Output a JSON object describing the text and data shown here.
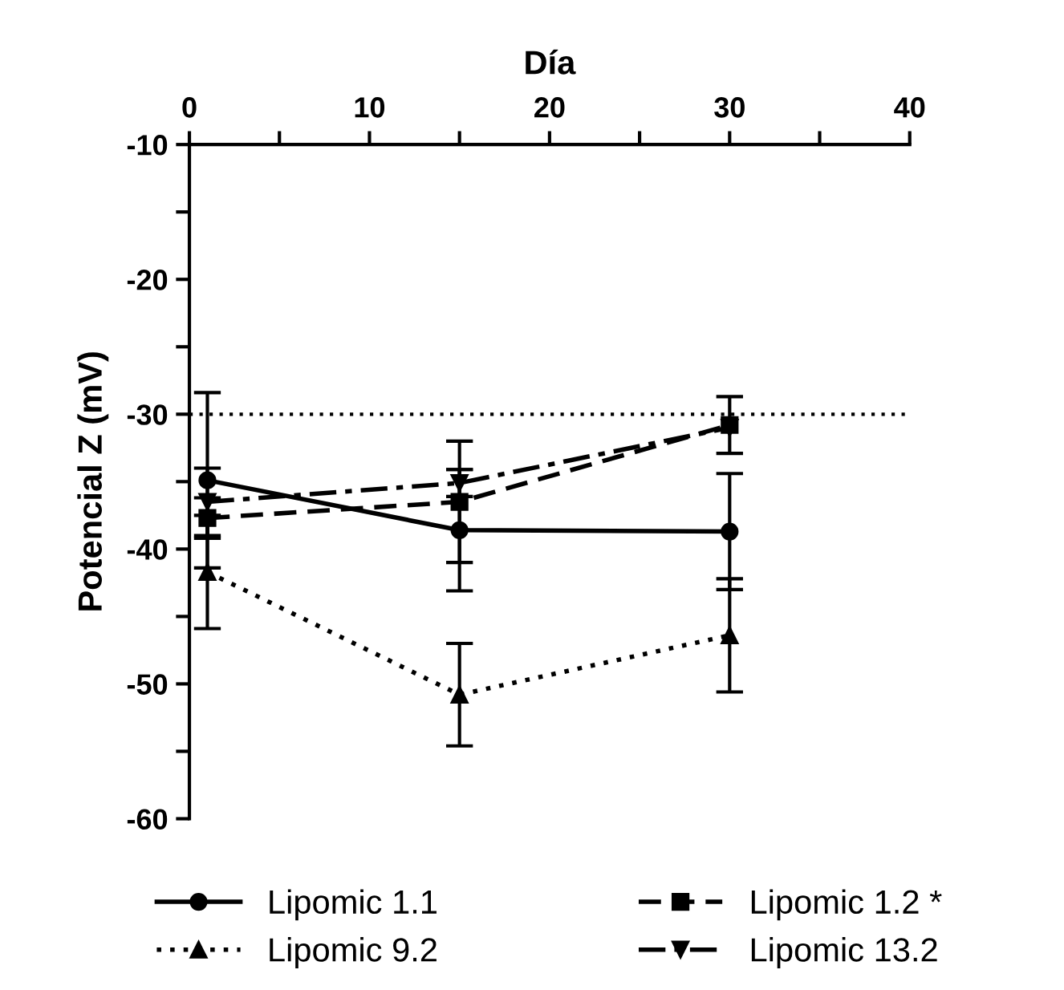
{
  "chart_data": {
    "type": "line",
    "xlabel": "Día",
    "ylabel": "Potencial Z (mV)",
    "x": [
      1,
      15,
      30
    ],
    "series": [
      {
        "name": "Lipomic 1.1",
        "color": "#000000",
        "marker": "circle",
        "line_style": "solid",
        "values": [
          -34.9,
          -38.6,
          -38.7
        ],
        "errors": [
          6.5,
          4.5,
          4.3
        ]
      },
      {
        "name": "Lipomic 1.2 *",
        "color": "#000000",
        "marker": "square",
        "line_style": "dashed",
        "values": [
          -37.7,
          -36.5,
          -30.8
        ],
        "errors": [
          1.5,
          4.5,
          2.1
        ]
      },
      {
        "name": "Lipomic 9.2",
        "color": "#000000",
        "marker": "triangle",
        "line_style": "dotted",
        "values": [
          -41.7,
          -50.8,
          -46.4
        ],
        "errors": [
          4.2,
          3.8,
          4.2
        ]
      },
      {
        "name": "Lipomic 13.2",
        "color": "#000000",
        "marker": "triangle_down",
        "line_style": "dashdot",
        "values": [
          -36.5,
          -35.1,
          -31.0
        ],
        "errors": [
          2.5,
          1.0,
          null
        ]
      }
    ],
    "xlim": [
      0,
      40
    ],
    "ylim": [
      -60,
      -10
    ],
    "xticks": [
      0,
      {
        "value": 5,
        "label": null
      },
      10,
      {
        "value": 15,
        "label": null
      },
      20,
      {
        "value": 25,
        "label": null
      },
      30,
      {
        "value": 35,
        "label": null
      },
      40
    ],
    "yticks": [
      -60,
      {
        "value": -55,
        "label": null
      },
      -50,
      {
        "value": -45,
        "label": null
      },
      -40,
      {
        "value": -35,
        "label": null
      },
      -30,
      {
        "value": -25,
        "label": null
      },
      -20,
      {
        "value": -15,
        "label": null
      },
      -10
    ],
    "ref_lines": [
      {
        "axis": "y",
        "value": -30,
        "label": null,
        "color": "#000000",
        "line_style": "dotted"
      }
    ],
    "grid": false,
    "legend": "bottom"
  }
}
